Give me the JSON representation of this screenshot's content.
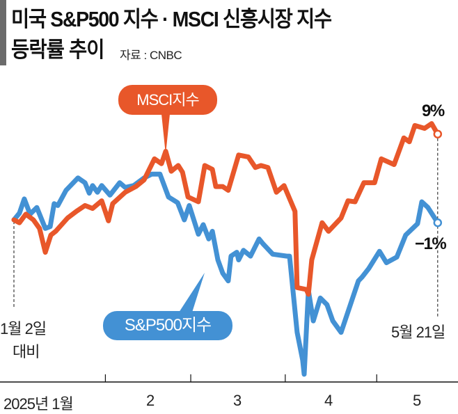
{
  "header": {
    "title_line1": "미국 S&P500 지수 · MSCI 신흥시장 지수",
    "title_line2": "등락률 추이",
    "source": "자료 : CNBC"
  },
  "chart_data": {
    "type": "line",
    "title": "미국 S&P500 지수 · MSCI 신흥시장 지수 등락률 추이",
    "xlabel": "",
    "ylabel": "",
    "x_unit": "day of year 2025",
    "ylim": [
      -17,
      11
    ],
    "grid": false,
    "x_ticks": [
      {
        "label": "2025년 1월"
      },
      {
        "label": "2"
      },
      {
        "label": "3"
      },
      {
        "label": "4"
      },
      {
        "label": "5"
      }
    ],
    "start_label": [
      "1월 2일",
      "대비"
    ],
    "end_label": "5월 21일",
    "colors": {
      "msci": "#e8572a",
      "sp500": "#4391d4"
    },
    "series": [
      {
        "name": "MSCI지수",
        "end_value_label": "9%",
        "x": [
          2,
          3.8,
          5.9,
          8.4,
          10.4,
          12.3,
          14.1,
          15.7,
          19.6,
          22.5,
          25.3,
          27.8,
          30.8,
          33,
          34.4,
          38.5,
          42,
          44.7,
          48.1,
          50.4,
          51.8,
          53.6,
          55.9,
          57.3,
          59.1,
          62.5,
          64.6,
          67.1,
          68.2,
          70.5,
          72.3,
          75.7,
          78.9,
          81.2,
          83,
          85.3,
          88.1,
          90.6,
          94.2,
          94.9,
          97.9,
          98.6,
          99.7,
          103.1,
          105.2,
          109.3,
          111.6,
          113.9,
          116.8,
          120.3,
          122.5,
          126.7,
          129.9,
          131.7,
          133.5,
          136.7,
          139,
          141
        ],
        "values": [
          0,
          -0.3,
          0.6,
          0,
          -0.9,
          -3.4,
          -1.6,
          -1.2,
          0.2,
          0.9,
          1.5,
          1.2,
          2.0,
          -0.1,
          1.7,
          2.9,
          3.5,
          4.2,
          6.4,
          5.9,
          7.2,
          5.1,
          5.7,
          5.0,
          2.4,
          1.9,
          5.7,
          5.3,
          3.5,
          3.5,
          3.1,
          6.8,
          6.6,
          5.5,
          5.7,
          5.5,
          2.9,
          3.6,
          0.9,
          -7.1,
          -7.3,
          -7.8,
          -4.2,
          -0.3,
          -1.2,
          0.2,
          2.0,
          1.9,
          3.9,
          3.9,
          6.4,
          5.8,
          8.6,
          8.2,
          9.9,
          9.6,
          10.1,
          9.0
        ]
      },
      {
        "name": "S&P500지수",
        "end_value_label": "−1%",
        "x": [
          2,
          3.8,
          5.4,
          7.3,
          9.5,
          12.3,
          13.9,
          15.2,
          16.4,
          19.1,
          23,
          25.3,
          26.7,
          27.8,
          29.4,
          30.8,
          33.5,
          36.7,
          38.5,
          41.3,
          44.7,
          47.2,
          49.9,
          52.7,
          55.7,
          57.9,
          59.5,
          62.5,
          64.1,
          65.9,
          67.1,
          68.9,
          70.5,
          72.3,
          73.2,
          75.1,
          75.7,
          77.3,
          79.6,
          82.4,
          83.7,
          86.9,
          91.5,
          92.4,
          94.9,
          96.7,
          97.2,
          98.6,
          100.2,
          102.5,
          104.7,
          106.6,
          109.3,
          115,
          116.2,
          118.4,
          121.9,
          124.2,
          127.6,
          130.5,
          134.4,
          135.8,
          137.8,
          141
        ],
        "values": [
          0,
          0.7,
          2.2,
          0.6,
          1.3,
          -0.9,
          -0.7,
          1.7,
          1.5,
          3.1,
          4.4,
          3.9,
          2.8,
          3.6,
          2.9,
          3.6,
          2.6,
          3.9,
          3.4,
          3.6,
          4.4,
          4.8,
          4.8,
          2.4,
          1.8,
          0,
          1.5,
          -1.5,
          -0.5,
          -2.0,
          -1.2,
          -4.2,
          -5.6,
          -6.4,
          -3.8,
          -3.4,
          -4.2,
          -3.2,
          -3.8,
          -2.0,
          -2.5,
          -3.6,
          -3.8,
          -3.8,
          -11.8,
          -14.7,
          -16.2,
          -7.4,
          -10.6,
          -8.2,
          -8.9,
          -10.6,
          -11.8,
          -6.4,
          -6.0,
          -5.1,
          -3.3,
          -4.5,
          -3.9,
          -1.6,
          -0.4,
          1.9,
          1.3,
          -0.3
        ]
      }
    ]
  }
}
